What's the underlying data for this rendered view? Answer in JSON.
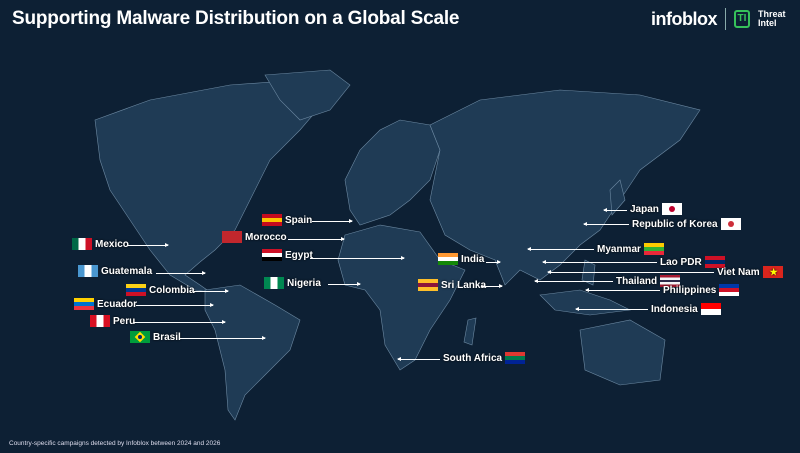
{
  "title": "Supporting Malware Distribution on a Global Scale",
  "logo": {
    "brand": "infoblox",
    "product": "Threat Intel",
    "shield_letter": "TI"
  },
  "footnote": "Country-specific campaigns detected by Infoblox between 2024 and 2026",
  "colors": {
    "background": "#0d2034",
    "land": "#1f3b55",
    "borders": "#6d8aa3",
    "accent": "#36c25a"
  },
  "countries": [
    {
      "name": "Spain",
      "flag": [
        "#c60b1e",
        "#ffc400",
        "#c60b1e"
      ]
    },
    {
      "name": "Morocco",
      "flag": [
        "#c1272d"
      ]
    },
    {
      "name": "Mexico",
      "flag": [
        "#006847",
        "#ffffff",
        "#ce1126"
      ]
    },
    {
      "name": "Egypt",
      "flag": [
        "#ce1126",
        "#ffffff",
        "#000000"
      ]
    },
    {
      "name": "Guatemala",
      "flag": [
        "#4997d0",
        "#ffffff",
        "#4997d0"
      ]
    },
    {
      "name": "Colombia",
      "flag": [
        "#fcd116",
        "#003893",
        "#ce1126"
      ]
    },
    {
      "name": "Nigeria",
      "flag": [
        "#008751",
        "#ffffff",
        "#008751"
      ]
    },
    {
      "name": "India",
      "flag": [
        "#ff9933",
        "#ffffff",
        "#138808"
      ]
    },
    {
      "name": "Sri Lanka",
      "flag": [
        "#ffbe29",
        "#8d153a",
        "#ffbe29"
      ]
    },
    {
      "name": "Ecuador",
      "flag": [
        "#ffd100",
        "#0072ce",
        "#ef3340"
      ]
    },
    {
      "name": "Peru",
      "flag": [
        "#d91023",
        "#ffffff",
        "#d91023"
      ]
    },
    {
      "name": "Brasil",
      "flag": [
        "#009c3b",
        "#ffdf00",
        "#009c3b"
      ]
    },
    {
      "name": "South Africa",
      "flag": [
        "#de3831",
        "#007a4d",
        "#002395"
      ]
    },
    {
      "name": "Japan",
      "flag": [
        "#ffffff",
        "#bc002d"
      ]
    },
    {
      "name": "Republic of Korea",
      "flag": [
        "#ffffff",
        "#cd2e3a"
      ]
    },
    {
      "name": "Myanmar",
      "flag": [
        "#fecb00",
        "#34b233",
        "#ea2839"
      ]
    },
    {
      "name": "Lao PDR",
      "flag": [
        "#ce1126",
        "#002868",
        "#ce1126"
      ]
    },
    {
      "name": "Viet Nam",
      "flag": [
        "#da251d",
        "#ffff00"
      ]
    },
    {
      "name": "Thailand",
      "flag": [
        "#a51931",
        "#f4f5f8",
        "#2d2a4a",
        "#f4f5f8",
        "#a51931"
      ]
    },
    {
      "name": "Philippines",
      "flag": [
        "#0038a8",
        "#ce1126",
        "#ffffff"
      ]
    },
    {
      "name": "Indonesia",
      "flag": [
        "#ff0000",
        "#ffffff"
      ]
    }
  ]
}
